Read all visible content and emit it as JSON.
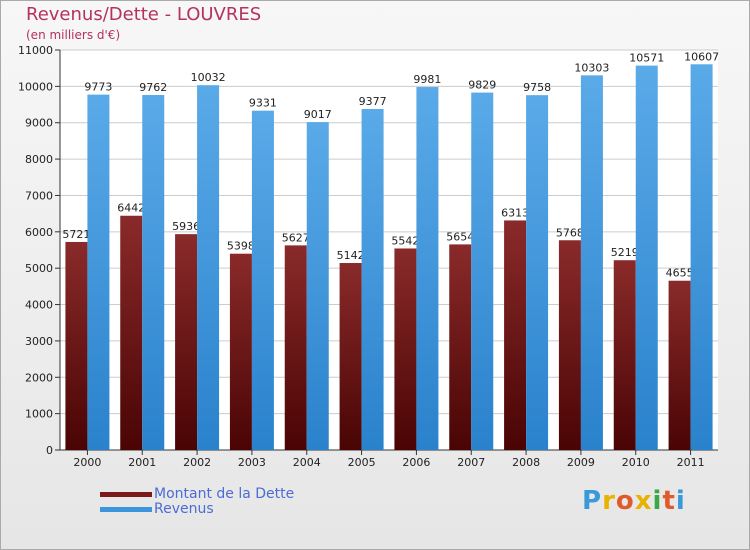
{
  "title": "Revenus/Dette - LOUVRES",
  "subtitle": "(en milliers d'€)",
  "logo": [
    "P",
    "r",
    "o",
    "x",
    "i",
    "t",
    "i"
  ],
  "logo_colors": [
    "#3a9ad9",
    "#e8b300",
    "#e05a2b",
    "#e8b300",
    "#39a845",
    "#e05a2b",
    "#3a9ad9"
  ],
  "chart_data": {
    "type": "bar",
    "categories": [
      "2000",
      "2001",
      "2002",
      "2003",
      "2004",
      "2005",
      "2006",
      "2007",
      "2008",
      "2009",
      "2010",
      "2011"
    ],
    "series": [
      {
        "name": "Montant de la Dette",
        "color": "#7a1a1a",
        "values": [
          5721,
          6442,
          5936,
          5398,
          5627,
          5142,
          5542,
          5654,
          6313,
          5768,
          5219,
          4655
        ]
      },
      {
        "name": "Revenus",
        "color": "#3b95dc",
        "values": [
          9773,
          9762,
          10032,
          9331,
          9017,
          9377,
          9981,
          9829,
          9758,
          10303,
          10571,
          10607
        ]
      }
    ],
    "yticks": [
      0,
      1000,
      2000,
      3000,
      4000,
      5000,
      6000,
      7000,
      8000,
      9000,
      10000,
      11000
    ],
    "ylim": [
      0,
      11000
    ],
    "grid": true,
    "legend_position": "bottom-left"
  }
}
